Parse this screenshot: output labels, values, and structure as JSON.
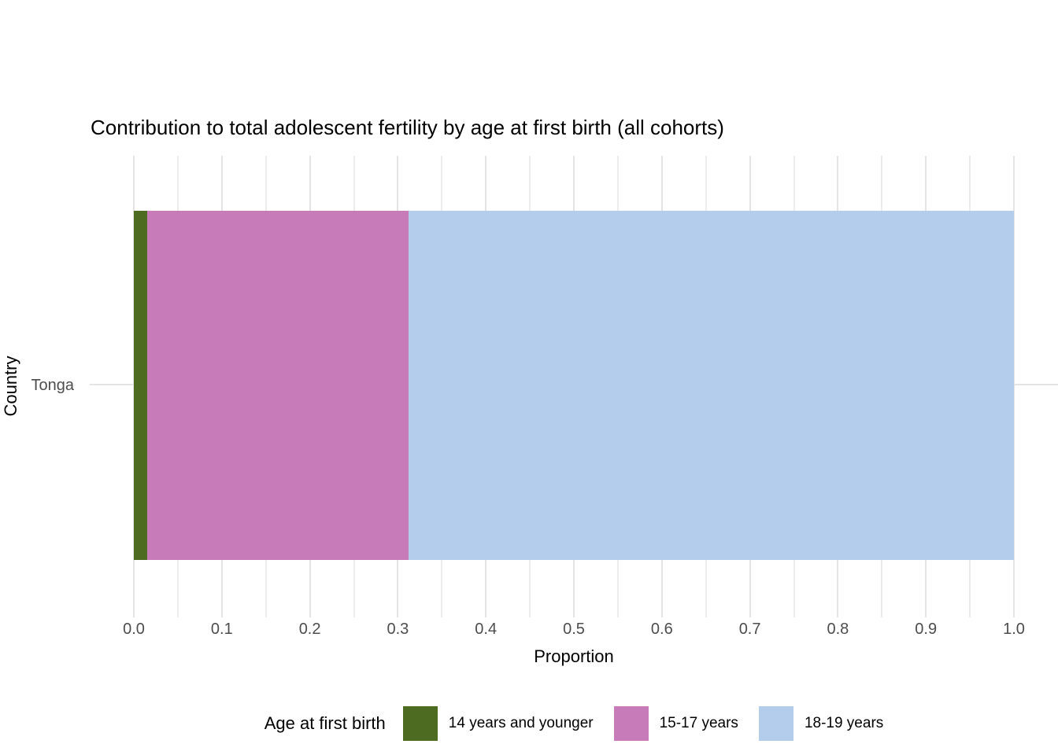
{
  "title": "Contribution to total adolescent fertility by age at first birth (all cohorts)",
  "axes": {
    "x_title": "Proportion",
    "y_title": "Country",
    "x_ticks": [
      "0.0",
      "0.1",
      "0.2",
      "0.3",
      "0.4",
      "0.5",
      "0.6",
      "0.7",
      "0.8",
      "0.9",
      "1.0"
    ],
    "y_ticks": [
      "Tonga"
    ]
  },
  "legend": {
    "title": "Age at first birth",
    "items": [
      {
        "label": "14 years and younger",
        "color": "#4D6B21"
      },
      {
        "label": "15-17 years",
        "color": "#C77CB9"
      },
      {
        "label": "18-19 years",
        "color": "#B5CDED"
      }
    ]
  },
  "chart_data": {
    "type": "bar",
    "orientation": "horizontal",
    "stacked": true,
    "title": "Contribution to total adolescent fertility by age at first birth (all cohorts)",
    "xlabel": "Proportion",
    "ylabel": "Country",
    "categories": [
      "Tonga"
    ],
    "series": [
      {
        "name": "14 years and younger",
        "color": "#4D6B21",
        "values": [
          0.015
        ]
      },
      {
        "name": "15-17 years",
        "color": "#C77CB9",
        "values": [
          0.297
        ]
      },
      {
        "name": "18-19 years",
        "color": "#B5CDED",
        "values": [
          0.688
        ]
      }
    ],
    "xlim": [
      0.0,
      1.0
    ],
    "x_tick_step": 0.1,
    "grid": "vertical major and minor gridlines, light gray, minimal theme",
    "legend_position": "bottom",
    "legend_title": "Age at first birth"
  },
  "style": {
    "background": "#FFFFFF",
    "grid_major": "#E4E4E4",
    "grid_minor": "#ECECEC",
    "tick_label_color": "#4D4D4D",
    "text_color": "#000000"
  }
}
